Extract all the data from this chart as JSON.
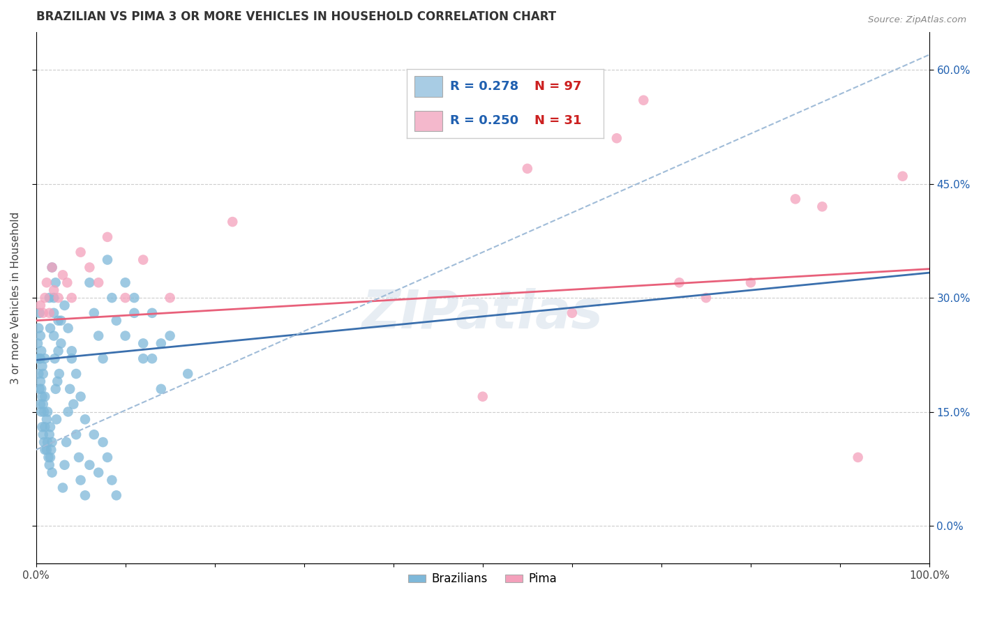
{
  "title": "BRAZILIAN VS PIMA 3 OR MORE VEHICLES IN HOUSEHOLD CORRELATION CHART",
  "source": "Source: ZipAtlas.com",
  "ylabel": "3 or more Vehicles in Household",
  "xlim": [
    0.0,
    1.0
  ],
  "ylim": [
    -0.05,
    0.65
  ],
  "xticks": [
    0.0,
    0.1,
    0.2,
    0.3,
    0.4,
    0.5,
    0.6,
    0.7,
    0.8,
    0.9,
    1.0
  ],
  "xticklabels": [
    "0.0%",
    "",
    "",
    "",
    "",
    "",
    "",
    "",
    "",
    "",
    "100.0%"
  ],
  "yticks": [
    0.0,
    0.15,
    0.3,
    0.45,
    0.6
  ],
  "yticklabels_right": [
    "0.0%",
    "15.0%",
    "30.0%",
    "45.0%",
    "60.0%"
  ],
  "blue_color": "#7eb8d9",
  "pink_color": "#f4a0bb",
  "blue_line_color": "#3a6fad",
  "pink_line_color": "#e8607a",
  "dashed_line_color": "#a0bcd8",
  "watermark": "ZIPatlas",
  "legend_box_blue": "#a8cce4",
  "legend_box_pink": "#f4b8cc",
  "legend_R1": "R = 0.278",
  "legend_N1": "N = 97",
  "legend_R2": "R = 0.250",
  "legend_N2": "N = 31",
  "legend_color_R": "#2060b0",
  "legend_color_N": "#cc2020",
  "blue_line_intercept": 0.218,
  "blue_line_slope": 0.115,
  "pink_line_intercept": 0.27,
  "pink_line_slope": 0.068,
  "dashed_line_intercept": 0.1,
  "dashed_line_slope": 0.52,
  "braz_x": [
    0.001,
    0.002,
    0.003,
    0.003,
    0.004,
    0.004,
    0.004,
    0.005,
    0.005,
    0.005,
    0.005,
    0.006,
    0.006,
    0.006,
    0.007,
    0.007,
    0.007,
    0.008,
    0.008,
    0.008,
    0.009,
    0.009,
    0.01,
    0.01,
    0.01,
    0.01,
    0.012,
    0.012,
    0.013,
    0.013,
    0.014,
    0.015,
    0.015,
    0.016,
    0.016,
    0.017,
    0.018,
    0.018,
    0.02,
    0.02,
    0.021,
    0.022,
    0.023,
    0.024,
    0.025,
    0.026,
    0.028,
    0.03,
    0.032,
    0.034,
    0.036,
    0.038,
    0.04,
    0.042,
    0.045,
    0.048,
    0.05,
    0.055,
    0.06,
    0.065,
    0.07,
    0.075,
    0.08,
    0.085,
    0.09,
    0.1,
    0.11,
    0.12,
    0.13,
    0.14,
    0.015,
    0.016,
    0.018,
    0.02,
    0.022,
    0.025,
    0.028,
    0.032,
    0.036,
    0.04,
    0.045,
    0.05,
    0.055,
    0.06,
    0.065,
    0.07,
    0.075,
    0.08,
    0.085,
    0.09,
    0.1,
    0.11,
    0.12,
    0.13,
    0.14,
    0.15,
    0.17
  ],
  "braz_y": [
    0.22,
    0.24,
    0.2,
    0.26,
    0.18,
    0.22,
    0.28,
    0.16,
    0.19,
    0.22,
    0.25,
    0.15,
    0.18,
    0.23,
    0.13,
    0.17,
    0.21,
    0.12,
    0.16,
    0.2,
    0.11,
    0.15,
    0.1,
    0.13,
    0.17,
    0.22,
    0.1,
    0.14,
    0.11,
    0.15,
    0.09,
    0.08,
    0.12,
    0.09,
    0.13,
    0.1,
    0.07,
    0.11,
    0.25,
    0.3,
    0.22,
    0.18,
    0.14,
    0.19,
    0.23,
    0.2,
    0.27,
    0.05,
    0.08,
    0.11,
    0.15,
    0.18,
    0.22,
    0.16,
    0.12,
    0.09,
    0.06,
    0.04,
    0.08,
    0.12,
    0.07,
    0.11,
    0.09,
    0.06,
    0.04,
    0.25,
    0.3,
    0.22,
    0.28,
    0.24,
    0.3,
    0.26,
    0.34,
    0.28,
    0.32,
    0.27,
    0.24,
    0.29,
    0.26,
    0.23,
    0.2,
    0.17,
    0.14,
    0.32,
    0.28,
    0.25,
    0.22,
    0.35,
    0.3,
    0.27,
    0.32,
    0.28,
    0.24,
    0.22,
    0.18,
    0.25,
    0.2
  ],
  "pima_x": [
    0.005,
    0.008,
    0.01,
    0.012,
    0.015,
    0.018,
    0.02,
    0.025,
    0.03,
    0.035,
    0.04,
    0.05,
    0.06,
    0.07,
    0.08,
    0.1,
    0.12,
    0.15,
    0.22,
    0.5,
    0.55,
    0.6,
    0.65,
    0.68,
    0.72,
    0.75,
    0.8,
    0.85,
    0.88,
    0.92,
    0.97
  ],
  "pima_y": [
    0.29,
    0.28,
    0.3,
    0.32,
    0.28,
    0.34,
    0.31,
    0.3,
    0.33,
    0.32,
    0.3,
    0.36,
    0.34,
    0.32,
    0.38,
    0.3,
    0.35,
    0.3,
    0.4,
    0.17,
    0.47,
    0.28,
    0.51,
    0.56,
    0.32,
    0.3,
    0.32,
    0.43,
    0.42,
    0.09,
    0.46
  ]
}
